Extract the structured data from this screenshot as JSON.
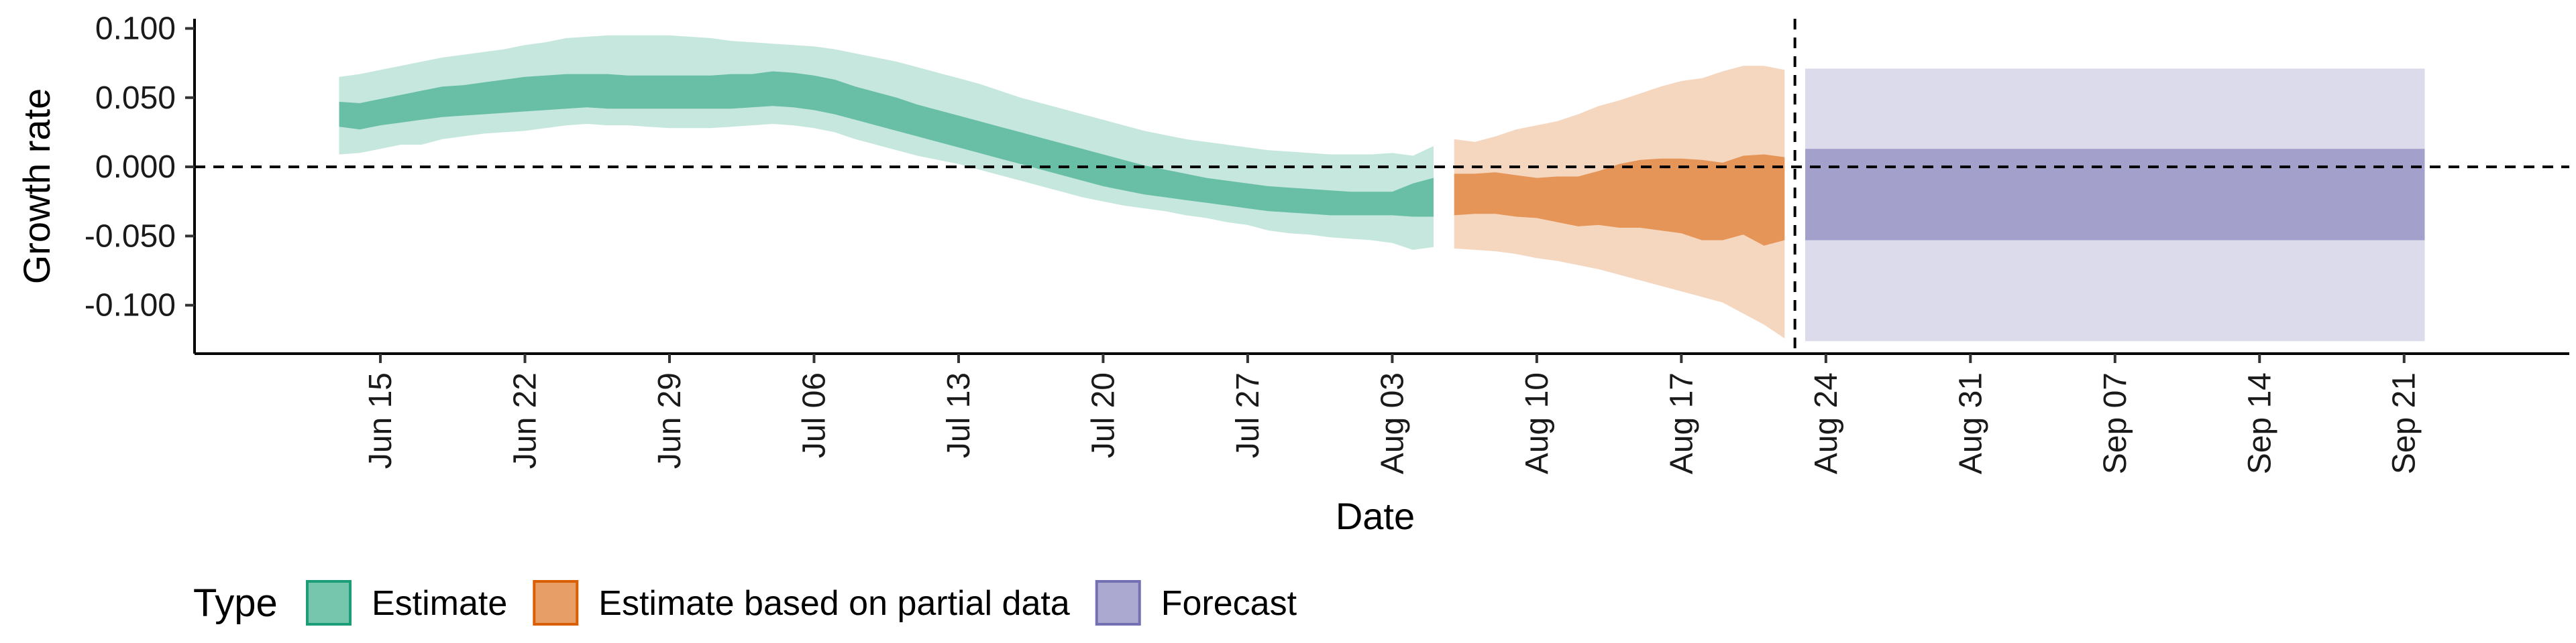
{
  "chart_data": {
    "type": "area",
    "xlabel": "Date",
    "ylabel": "Growth rate",
    "xlim": [
      "2020-06-06",
      "2020-09-29"
    ],
    "ylim": [
      -0.135,
      0.107
    ],
    "y_ticks": [
      0.1,
      0.05,
      0.0,
      -0.05,
      -0.1
    ],
    "y_tick_labels": [
      "0.100",
      "0.050",
      "0.000",
      "-0.050",
      "-0.100"
    ],
    "x_ticks": [
      "2020-06-15",
      "2020-06-22",
      "2020-06-29",
      "2020-07-06",
      "2020-07-13",
      "2020-07-20",
      "2020-07-27",
      "2020-08-03",
      "2020-08-10",
      "2020-08-17",
      "2020-08-24",
      "2020-08-31",
      "2020-09-07",
      "2020-09-14",
      "2020-09-21"
    ],
    "x_tick_labels": [
      "Jun 15",
      "Jun 22",
      "Jun 29",
      "Jul 06",
      "Jul 13",
      "Jul 20",
      "Jul 27",
      "Aug 03",
      "Aug 10",
      "Aug 17",
      "Aug 24",
      "Aug 31",
      "Sep 07",
      "Sep 14",
      "Sep 21"
    ],
    "zero_line": 0,
    "vertical_line": "2020-08-22",
    "grid": false,
    "legend": {
      "title": "Type",
      "placement": "bottom-left",
      "items": [
        {
          "label": "Estimate",
          "color": "#1b9e77"
        },
        {
          "label": "Estimate based on partial data",
          "color": "#d95f02"
        },
        {
          "label": "Forecast",
          "color": "#7570b3"
        }
      ]
    },
    "series": [
      {
        "name": "Estimate",
        "color": "#1b9e77",
        "x": [
          "2020-06-13",
          "2020-06-14",
          "2020-06-15",
          "2020-06-16",
          "2020-06-17",
          "2020-06-18",
          "2020-06-19",
          "2020-06-20",
          "2020-06-21",
          "2020-06-22",
          "2020-06-23",
          "2020-06-24",
          "2020-06-25",
          "2020-06-26",
          "2020-06-27",
          "2020-06-28",
          "2020-06-29",
          "2020-06-30",
          "2020-07-01",
          "2020-07-02",
          "2020-07-03",
          "2020-07-04",
          "2020-07-05",
          "2020-07-06",
          "2020-07-07",
          "2020-07-08",
          "2020-07-09",
          "2020-07-10",
          "2020-07-11",
          "2020-07-12",
          "2020-07-13",
          "2020-07-14",
          "2020-07-15",
          "2020-07-16",
          "2020-07-17",
          "2020-07-18",
          "2020-07-19",
          "2020-07-20",
          "2020-07-21",
          "2020-07-22",
          "2020-07-23",
          "2020-07-24",
          "2020-07-25",
          "2020-07-26",
          "2020-07-27",
          "2020-07-28",
          "2020-07-29",
          "2020-07-30",
          "2020-07-31",
          "2020-08-01",
          "2020-08-02",
          "2020-08-03",
          "2020-08-04",
          "2020-08-05"
        ],
        "lower_90": [
          0.009,
          0.01,
          0.013,
          0.016,
          0.016,
          0.02,
          0.022,
          0.024,
          0.025,
          0.026,
          0.028,
          0.03,
          0.031,
          0.03,
          0.03,
          0.029,
          0.028,
          0.028,
          0.028,
          0.029,
          0.03,
          0.031,
          0.03,
          0.028,
          0.025,
          0.02,
          0.016,
          0.012,
          0.008,
          0.005,
          0.002,
          -0.002,
          -0.006,
          -0.01,
          -0.014,
          -0.018,
          -0.022,
          -0.025,
          -0.028,
          -0.03,
          -0.032,
          -0.035,
          -0.037,
          -0.04,
          -0.042,
          -0.046,
          -0.048,
          -0.049,
          -0.051,
          -0.052,
          -0.053,
          -0.055,
          -0.06,
          -0.058
        ],
        "upper_90": [
          0.065,
          0.067,
          0.07,
          0.073,
          0.076,
          0.079,
          0.081,
          0.083,
          0.085,
          0.088,
          0.09,
          0.093,
          0.094,
          0.095,
          0.095,
          0.095,
          0.095,
          0.094,
          0.093,
          0.091,
          0.09,
          0.089,
          0.088,
          0.087,
          0.085,
          0.082,
          0.079,
          0.076,
          0.072,
          0.068,
          0.064,
          0.06,
          0.055,
          0.05,
          0.046,
          0.042,
          0.038,
          0.034,
          0.03,
          0.026,
          0.023,
          0.02,
          0.018,
          0.016,
          0.014,
          0.012,
          0.011,
          0.01,
          0.009,
          0.009,
          0.009,
          0.01,
          0.008,
          0.015
        ],
        "lower_50": [
          0.029,
          0.027,
          0.03,
          0.032,
          0.034,
          0.036,
          0.037,
          0.038,
          0.039,
          0.04,
          0.041,
          0.042,
          0.043,
          0.042,
          0.042,
          0.042,
          0.042,
          0.042,
          0.042,
          0.042,
          0.043,
          0.044,
          0.043,
          0.041,
          0.038,
          0.034,
          0.03,
          0.026,
          0.022,
          0.018,
          0.014,
          0.01,
          0.006,
          0.002,
          -0.002,
          -0.006,
          -0.01,
          -0.014,
          -0.017,
          -0.02,
          -0.022,
          -0.024,
          -0.026,
          -0.028,
          -0.03,
          -0.032,
          -0.033,
          -0.034,
          -0.035,
          -0.035,
          -0.035,
          -0.035,
          -0.036,
          -0.036
        ],
        "upper_50": [
          0.047,
          0.046,
          0.049,
          0.052,
          0.055,
          0.058,
          0.059,
          0.061,
          0.063,
          0.065,
          0.066,
          0.067,
          0.067,
          0.067,
          0.066,
          0.066,
          0.066,
          0.066,
          0.066,
          0.067,
          0.067,
          0.069,
          0.068,
          0.066,
          0.063,
          0.058,
          0.054,
          0.05,
          0.045,
          0.041,
          0.037,
          0.033,
          0.029,
          0.025,
          0.021,
          0.017,
          0.013,
          0.009,
          0.005,
          0.001,
          -0.002,
          -0.005,
          -0.008,
          -0.01,
          -0.012,
          -0.014,
          -0.015,
          -0.016,
          -0.017,
          -0.018,
          -0.018,
          -0.018,
          -0.012,
          -0.008
        ]
      },
      {
        "name": "Estimate based on partial data",
        "color": "#d95f02",
        "x": [
          "2020-08-06",
          "2020-08-07",
          "2020-08-08",
          "2020-08-09",
          "2020-08-10",
          "2020-08-11",
          "2020-08-12",
          "2020-08-13",
          "2020-08-14",
          "2020-08-15",
          "2020-08-16",
          "2020-08-17",
          "2020-08-18",
          "2020-08-19",
          "2020-08-20",
          "2020-08-21",
          "2020-08-22"
        ],
        "lower_90": [
          -0.059,
          -0.06,
          -0.061,
          -0.063,
          -0.066,
          -0.068,
          -0.071,
          -0.074,
          -0.078,
          -0.082,
          -0.086,
          -0.09,
          -0.094,
          -0.098,
          -0.106,
          -0.114,
          -0.124
        ],
        "upper_90": [
          0.02,
          0.018,
          0.022,
          0.027,
          0.03,
          0.033,
          0.038,
          0.044,
          0.048,
          0.053,
          0.058,
          0.062,
          0.064,
          0.069,
          0.073,
          0.073,
          0.07
        ],
        "lower_50": [
          -0.035,
          -0.034,
          -0.034,
          -0.036,
          -0.037,
          -0.04,
          -0.043,
          -0.042,
          -0.044,
          -0.044,
          -0.046,
          -0.048,
          -0.053,
          -0.053,
          -0.049,
          -0.057,
          -0.053
        ],
        "upper_50": [
          -0.005,
          -0.005,
          -0.004,
          -0.006,
          -0.008,
          -0.007,
          -0.007,
          -0.003,
          0.002,
          0.005,
          0.006,
          0.006,
          0.005,
          0.003,
          0.008,
          0.009,
          0.007
        ]
      },
      {
        "name": "Forecast",
        "color": "#7570b3",
        "x": [
          "2020-08-23",
          "2020-09-22"
        ],
        "lower_90": [
          -0.126,
          -0.126
        ],
        "upper_90": [
          0.071,
          0.071
        ],
        "lower_50": [
          -0.053,
          -0.053
        ],
        "upper_50": [
          0.013,
          0.013
        ]
      }
    ]
  }
}
